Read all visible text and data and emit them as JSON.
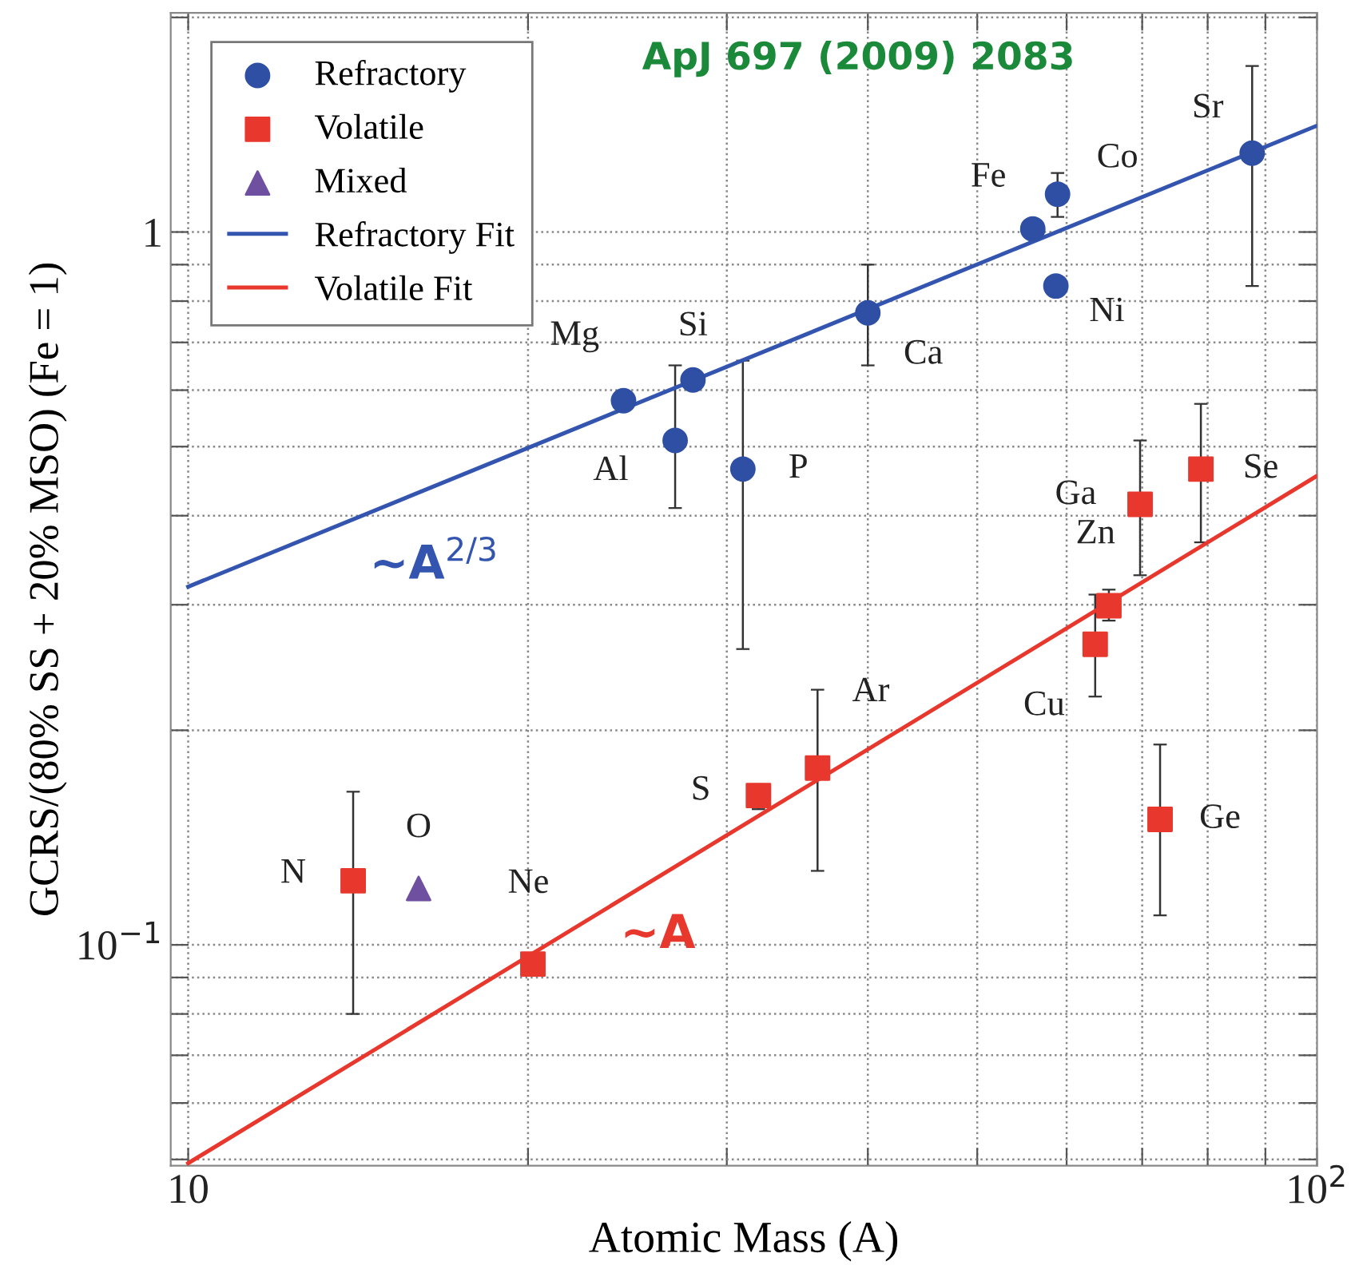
{
  "chart_data": {
    "type": "scatter",
    "xlabel": "Atomic Mass (A)",
    "ylabel": "GCRS/(80% SS + 20% MSO) (Fe = 1)",
    "log": "xy",
    "xlim": [
      9.65,
      100
    ],
    "ylim": [
      0.049,
      2.03
    ],
    "xticks": [
      10,
      {
        "value": 20,
        "label": null
      },
      {
        "value": 30,
        "label": null
      },
      {
        "value": 40,
        "label": null
      },
      {
        "value": 50,
        "label": null
      },
      {
        "value": 60,
        "label": null
      },
      {
        "value": 70,
        "label": null
      },
      {
        "value": 80,
        "label": null
      },
      {
        "value": 90,
        "label": null
      },
      {
        "value": 100,
        "label": "10$^{2}$"
      }
    ],
    "yticks": [
      {
        "value": 0.05,
        "label": null
      },
      {
        "value": 0.06,
        "label": null
      },
      {
        "value": 0.07,
        "label": null
      },
      {
        "value": 0.08,
        "label": null
      },
      {
        "value": 0.09,
        "label": null
      },
      {
        "value": 0.1,
        "label": "10$^{−1}$"
      },
      {
        "value": 0.2,
        "label": null
      },
      {
        "value": 0.3,
        "label": null
      },
      {
        "value": 0.4,
        "label": null
      },
      {
        "value": 0.5,
        "label": null
      },
      {
        "value": 0.6,
        "label": null
      },
      {
        "value": 0.7,
        "label": null
      },
      {
        "value": 0.8,
        "label": null
      },
      {
        "value": 0.9,
        "label": null
      },
      1,
      {
        "value": 2,
        "label": null
      }
    ],
    "grid": true,
    "legend": "top left",
    "series": [
      {
        "name": "Refractory",
        "marker": "circle",
        "color": "#2e4fa3",
        "x": [
          24.3,
          27.0,
          28.0,
          31.0,
          40.0,
          56.0,
          58.9,
          58.7,
          87.6
        ],
        "values": [
          0.58,
          0.51,
          0.62,
          0.465,
          0.77,
          1.01,
          1.13,
          0.84,
          1.29
        ],
        "errors": [
          null,
          [
            0.41,
            0.65
          ],
          null,
          [
            0.26,
            0.66
          ],
          [
            0.65,
            0.9
          ],
          null,
          [
            1.05,
            1.21
          ],
          null,
          [
            0.84,
            1.71
          ]
        ]
      },
      {
        "name": "Volatile",
        "marker": "square",
        "color": "#e8382e",
        "x": [
          14.0,
          20.2,
          32.0,
          36.1,
          63.6,
          65.4,
          69.7,
          72.6,
          78.9
        ],
        "values": [
          0.123,
          0.094,
          0.162,
          0.177,
          0.264,
          0.299,
          0.415,
          0.15,
          0.465
        ],
        "errors": [
          [
            0.08,
            0.164
          ],
          [
            0.091,
            0.097
          ],
          [
            0.155,
            0.168
          ],
          [
            0.127,
            0.228
          ],
          [
            0.223,
            0.31
          ],
          [
            0.285,
            0.315
          ],
          [
            0.33,
            0.51
          ],
          [
            0.11,
            0.191
          ],
          [
            0.367,
            0.574
          ]
        ]
      },
      {
        "name": "Mixed",
        "marker": "triangle",
        "color": "#6f4fa0",
        "x": [
          16.0
        ],
        "values": [
          0.12
        ]
      },
      {
        "name": "Refractory Fit",
        "type": "line",
        "line_style": "solid",
        "color": "#3355b0",
        "x": [
          10,
          100
        ],
        "values": [
          0.318,
          1.41
        ]
      },
      {
        "name": "Volatile Fit",
        "type": "line",
        "line_style": "solid",
        "color": "#e8382e",
        "x": [
          10,
          100
        ],
        "values": [
          0.0494,
          0.455
        ]
      }
    ],
    "annotations": [
      "ApJ 697 (2009) 2083",
      "~A$^{2/3}$",
      "~A",
      {
        "text": "Mg",
        "x": 24.3,
        "y": 0.58
      },
      {
        "text": "Al",
        "x": 27.0,
        "y": 0.51
      },
      {
        "text": "Si",
        "x": 28.0,
        "y": 0.62
      },
      {
        "text": "P",
        "x": 31.0,
        "y": 0.465
      },
      {
        "text": "Ca",
        "x": 40.0,
        "y": 0.77
      },
      {
        "text": "Fe",
        "x": 56.0,
        "y": 1.01
      },
      {
        "text": "Co",
        "x": 58.9,
        "y": 1.13
      },
      {
        "text": "Ni",
        "x": 58.7,
        "y": 0.84
      },
      {
        "text": "Sr",
        "x": 87.6,
        "y": 1.29
      },
      {
        "text": "N",
        "x": 14.0,
        "y": 0.123
      },
      {
        "text": "O",
        "x": 16.0,
        "y": 0.12
      },
      {
        "text": "Ne",
        "x": 20.2,
        "y": 0.094
      },
      {
        "text": "S",
        "x": 32.0,
        "y": 0.162
      },
      {
        "text": "Ar",
        "x": 36.1,
        "y": 0.177
      },
      {
        "text": "Cu",
        "x": 63.6,
        "y": 0.264
      },
      {
        "text": "Zn",
        "x": 65.4,
        "y": 0.299
      },
      {
        "text": "Ga",
        "x": 69.7,
        "y": 0.415
      },
      {
        "text": "Se",
        "x": 78.9,
        "y": 0.465
      },
      {
        "text": "Ge",
        "x": 72.6,
        "y": 0.15
      }
    ]
  }
}
